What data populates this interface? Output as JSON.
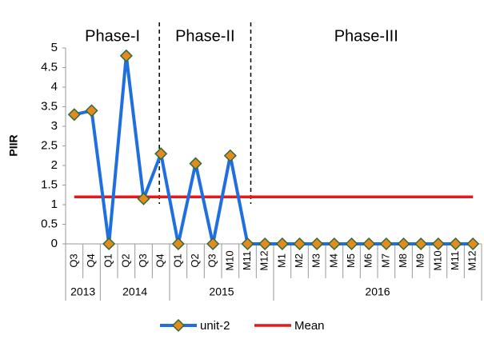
{
  "chart_data": {
    "type": "line",
    "y_label": "PIIR",
    "phases": [
      "Phase-I",
      "Phase-II",
      "Phase-III"
    ],
    "categories": [
      "Q3",
      "Q4",
      "Q1",
      "Q2",
      "Q3",
      "Q4",
      "Q1",
      "Q2",
      "Q3",
      "M10",
      "M11",
      "M12",
      "M1",
      "M2",
      "M3",
      "M4",
      "M5",
      "M6",
      "M7",
      "M8",
      "M9",
      "M10",
      "M11",
      "M12"
    ],
    "category_groups": [
      "2013",
      null,
      "2014",
      null,
      null,
      null,
      "2015",
      null,
      null,
      null,
      null,
      null,
      "2016",
      null,
      null,
      null,
      null,
      null,
      null,
      null,
      null,
      null,
      null,
      null
    ],
    "series": [
      {
        "name": "unit-2",
        "color": "#1f6fe0",
        "marker_color": "#e58a1f",
        "values": [
          3.3,
          3.4,
          0,
          4.8,
          1.15,
          2.3,
          0,
          2.05,
          0,
          2.25,
          0,
          0,
          0,
          0,
          0,
          0,
          0,
          0,
          0,
          0,
          0,
          0,
          0,
          0
        ]
      },
      {
        "name": "Mean",
        "color": "#e31a1c",
        "values": [
          1.2,
          1.2,
          1.2,
          1.2,
          1.2,
          1.2,
          1.2,
          1.2,
          1.2,
          1.2,
          1.2,
          1.2,
          1.2,
          1.2,
          1.2,
          1.2,
          1.2,
          1.2,
          1.2,
          1.2,
          1.2,
          1.2,
          1.2,
          1.2
        ]
      }
    ],
    "ylim": [
      0,
      5
    ],
    "yticks": [
      0,
      0.5,
      1,
      1.5,
      2,
      2.5,
      3,
      3.5,
      4,
      4.5,
      5
    ],
    "grid": false,
    "legend": "bottom"
  }
}
